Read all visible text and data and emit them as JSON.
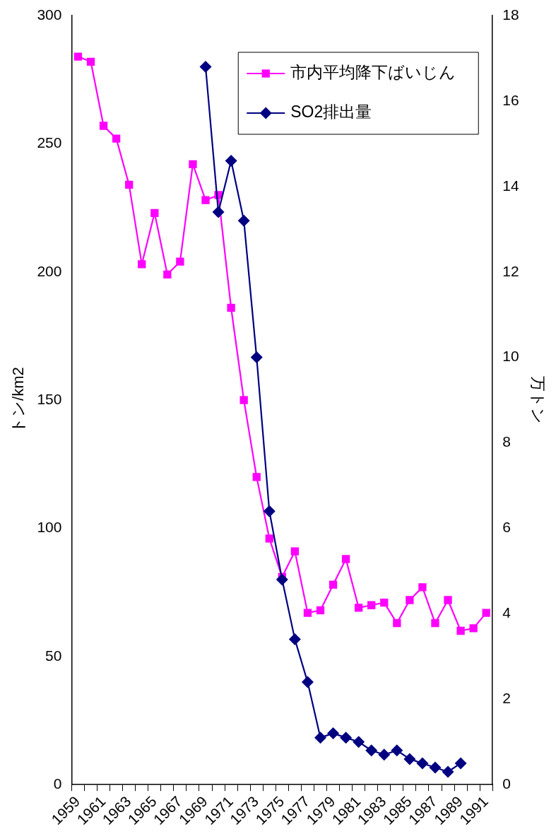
{
  "chart_data": {
    "type": "line",
    "xlabel": null,
    "ylabel": "トン/km2",
    "y2label": "万トン",
    "categories": [
      "1959",
      null,
      "1961",
      null,
      "1963",
      null,
      "1965",
      null,
      "1967",
      null,
      "1969",
      null,
      "1971",
      null,
      "1973",
      null,
      "1975",
      null,
      "1977",
      null,
      "1979",
      null,
      "1981",
      null,
      "1983",
      null,
      "1985",
      null,
      "1987",
      null,
      "1989",
      null,
      "1991"
    ],
    "series": [
      {
        "name": "市内平均降下ばいじん",
        "color": "#ff00ff",
        "marker": "square",
        "values": [
          284,
          282,
          257,
          252,
          234,
          203,
          223,
          199,
          204,
          242,
          228,
          230,
          186,
          150,
          120,
          96,
          81,
          91,
          67,
          68,
          78,
          88,
          69,
          70,
          71,
          63,
          72,
          77,
          63,
          72,
          60,
          61,
          67
        ]
      },
      {
        "name": "SO2排出量",
        "color": "#000080",
        "marker": "diamond",
        "axis": "y2",
        "values": [
          null,
          null,
          null,
          null,
          null,
          null,
          null,
          null,
          null,
          null,
          16.8,
          13.4,
          14.6,
          13.2,
          10.0,
          6.4,
          4.8,
          3.4,
          2.4,
          1.1,
          1.2,
          1.1,
          1.0,
          0.8,
          0.7,
          0.8,
          0.6,
          0.5,
          0.4,
          0.3,
          0.5,
          null,
          null
        ]
      }
    ],
    "ylim": [
      0,
      300
    ],
    "yticks": [
      0,
      50,
      100,
      150,
      200,
      250,
      300
    ],
    "y2lim": [
      0,
      18
    ],
    "y2ticks": [
      0,
      2,
      4,
      6,
      8,
      10,
      12,
      14,
      16,
      18
    ],
    "grid": false,
    "legend": "top right"
  }
}
